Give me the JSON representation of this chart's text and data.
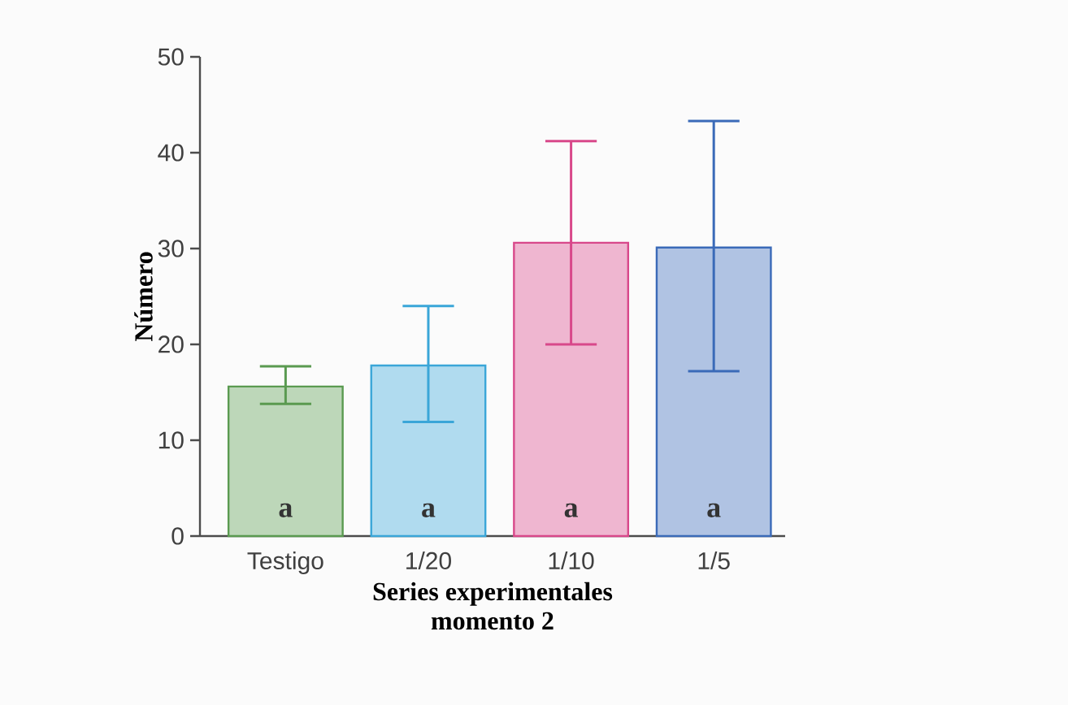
{
  "chart_data": {
    "type": "bar",
    "xlabel": "Series experimentales\nmomento 2",
    "ylabel": "Número",
    "categories": [
      "Testigo",
      "1/20",
      "1/10",
      "1/5"
    ],
    "values": [
      15.6,
      17.8,
      30.6,
      30.1
    ],
    "colors": [
      "#5a9a50",
      "#3aa6d8",
      "#d8488a",
      "#3a6ab8"
    ],
    "errors": [
      [
        13.8,
        17.7
      ],
      [
        11.9,
        24.0
      ],
      [
        20.0,
        41.2
      ],
      [
        17.2,
        43.3
      ]
    ],
    "ylim": [
      0,
      50
    ],
    "yticks": [
      0,
      10,
      20,
      30,
      40,
      50
    ],
    "grid": false,
    "annotations": [
      "a",
      "a",
      "a",
      "a"
    ]
  }
}
